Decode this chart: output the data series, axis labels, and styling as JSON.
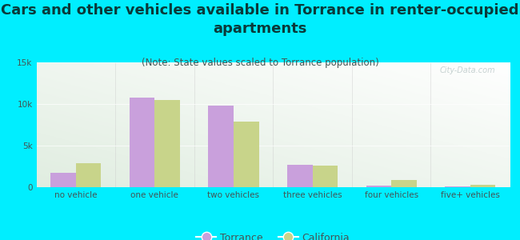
{
  "title": "Cars and other vehicles available in Torrance in renter-occupied\napartments",
  "subtitle": "(Note: State values scaled to Torrance population)",
  "categories": [
    "no vehicle",
    "one vehicle",
    "two vehicles",
    "three vehicles",
    "four vehicles",
    "five+ vehicles"
  ],
  "torrance_values": [
    1700,
    10800,
    9800,
    2700,
    150,
    100
  ],
  "california_values": [
    2900,
    10500,
    7900,
    2600,
    850,
    300
  ],
  "torrance_color": "#c9a0dc",
  "california_color": "#c8d48a",
  "background_color": "#00eeff",
  "plot_bg_color": "#e8f5e0",
  "ylim": [
    0,
    15000
  ],
  "yticks": [
    0,
    5000,
    10000,
    15000
  ],
  "ytick_labels": [
    "0",
    "5k",
    "10k",
    "15k"
  ],
  "bar_width": 0.32,
  "title_fontsize": 13,
  "subtitle_fontsize": 8.5,
  "tick_fontsize": 7.5,
  "legend_fontsize": 9,
  "title_color": "#0a3a3a",
  "subtitle_color": "#445555",
  "tick_color": "#445555",
  "watermark": "City-Data.com"
}
